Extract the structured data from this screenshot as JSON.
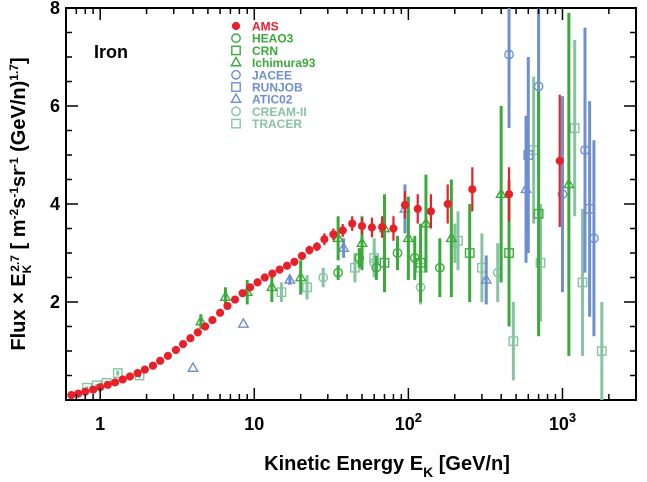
{
  "chart_data": {
    "type": "scatter",
    "title": "",
    "panel_label": "Iron",
    "xlabel": "Kinetic Energy E_K [GeV/n]",
    "ylabel": "Flux × E_K^2.7 [ m^-2 s^-1 sr^-1 (GeV/n)^1.7 ]",
    "x_scale": "log",
    "xlim": [
      0.6,
      3000
    ],
    "ylim": [
      0,
      8
    ],
    "x_ticks": [
      {
        "value": 1,
        "label": "1"
      },
      {
        "value": 10,
        "label": "10"
      },
      {
        "value": 100,
        "label": "10",
        "sup": "2"
      },
      {
        "value": 1000,
        "label": "10",
        "sup": "3"
      }
    ],
    "y_ticks": [
      {
        "value": 2,
        "label": "2"
      },
      {
        "value": 4,
        "label": "4"
      },
      {
        "value": 6,
        "label": "6"
      },
      {
        "value": 8,
        "label": "8"
      }
    ],
    "legend_position": "top-left",
    "series": [
      {
        "name": "AMS",
        "color": "#e8202a",
        "marker": "filled-circle",
        "points": [
          [
            0.65,
            0.1,
            0.02
          ],
          [
            0.72,
            0.13,
            0.02
          ],
          [
            0.8,
            0.17,
            0.02
          ],
          [
            0.9,
            0.21,
            0.02
          ],
          [
            1.0,
            0.26,
            0.02
          ],
          [
            1.12,
            0.31,
            0.02
          ],
          [
            1.25,
            0.36,
            0.02
          ],
          [
            1.4,
            0.42,
            0.02
          ],
          [
            1.56,
            0.48,
            0.02
          ],
          [
            1.75,
            0.55,
            0.03
          ],
          [
            1.95,
            0.62,
            0.03
          ],
          [
            2.2,
            0.7,
            0.03
          ],
          [
            2.45,
            0.8,
            0.03
          ],
          [
            2.75,
            0.9,
            0.03
          ],
          [
            3.1,
            1.02,
            0.03
          ],
          [
            3.45,
            1.14,
            0.03
          ],
          [
            3.85,
            1.26,
            0.04
          ],
          [
            4.3,
            1.38,
            0.04
          ],
          [
            4.8,
            1.5,
            0.04
          ],
          [
            5.35,
            1.63,
            0.04
          ],
          [
            6.0,
            1.78,
            0.05
          ],
          [
            6.7,
            1.92,
            0.05
          ],
          [
            7.5,
            2.05,
            0.05
          ],
          [
            8.4,
            2.18,
            0.05
          ],
          [
            9.4,
            2.3,
            0.06
          ],
          [
            10.5,
            2.4,
            0.06
          ],
          [
            11.7,
            2.5,
            0.06
          ],
          [
            13.1,
            2.58,
            0.06
          ],
          [
            14.6,
            2.66,
            0.07
          ],
          [
            16.3,
            2.74,
            0.07
          ],
          [
            18.2,
            2.82,
            0.08
          ],
          [
            20.4,
            2.94,
            0.08
          ],
          [
            22.8,
            3.06,
            0.09
          ],
          [
            25.5,
            3.13,
            0.09
          ],
          [
            28.5,
            3.28,
            0.12
          ],
          [
            32.6,
            3.38,
            0.12
          ],
          [
            37.5,
            3.46,
            0.13
          ],
          [
            43.2,
            3.6,
            0.15
          ],
          [
            50.0,
            3.55,
            0.17
          ],
          [
            58.0,
            3.52,
            0.2
          ],
          [
            67.5,
            3.53,
            0.22
          ],
          [
            80.0,
            3.5,
            0.25
          ],
          [
            95.0,
            3.98,
            0.28
          ],
          [
            115,
            3.9,
            0.3
          ],
          [
            140,
            3.85,
            0.35
          ],
          [
            180,
            4.0,
            0.4
          ],
          [
            260,
            4.3,
            0.45
          ],
          [
            450,
            4.2,
            0.55
          ],
          [
            960,
            4.88,
            1.35
          ]
        ]
      },
      {
        "name": "HEAO3",
        "color": "#3aaa3a",
        "marker": "open-circle",
        "points": [
          [
            35,
            2.6,
            0.15
          ],
          [
            48,
            2.9,
            0.2
          ],
          [
            62,
            2.7,
            0.25
          ],
          [
            85,
            3.0,
            0.35
          ],
          [
            110,
            2.9,
            0.45
          ],
          [
            160,
            2.7,
            0.6
          ]
        ]
      },
      {
        "name": "CRN",
        "color": "#3aaa3a",
        "marker": "open-square",
        "points": [
          [
            70,
            2.8,
            0.6
          ],
          [
            120,
            2.8,
            0.8
          ],
          [
            250,
            3.0,
            1.0
          ],
          [
            450,
            3.0,
            1.5
          ],
          [
            700,
            3.8,
            2.5
          ]
        ]
      },
      {
        "name": "Ichimura93",
        "color": "#3aaa3a",
        "marker": "open-triangle",
        "points": [
          [
            4.5,
            1.6,
            0.15
          ],
          [
            6.5,
            2.1,
            0.2
          ],
          [
            9.0,
            2.2,
            0.25
          ],
          [
            13,
            2.3,
            0.3
          ],
          [
            20,
            2.5,
            0.35
          ],
          [
            35,
            3.3,
            0.45
          ],
          [
            50,
            3.2,
            0.55
          ],
          [
            70,
            3.5,
            0.7
          ],
          [
            100,
            3.3,
            0.85
          ],
          [
            130,
            3.6,
            1.0
          ],
          [
            190,
            3.3,
            1.2
          ],
          [
            400,
            4.2,
            1.8
          ],
          [
            1100,
            4.4,
            3.5
          ]
        ]
      },
      {
        "name": "JACEE",
        "color": "#6f8fcf",
        "marker": "open-circle",
        "points": [
          [
            450,
            7.05,
            1.5
          ],
          [
            700,
            6.4,
            1.8
          ],
          [
            1000,
            4.2,
            2.0
          ],
          [
            1400,
            5.1,
            2.5
          ],
          [
            1600,
            3.3,
            2.0
          ]
        ]
      },
      {
        "name": "RUNJOB",
        "color": "#6f8fcf",
        "marker": "open-square",
        "points": [
          [
            600,
            5.0,
            2.0
          ],
          [
            1500,
            3.9,
            2.2
          ]
        ]
      },
      {
        "name": "ATIC02",
        "color": "#6f8fcf",
        "marker": "open-triangle",
        "points": [
          [
            4.0,
            0.65,
            0.0
          ],
          [
            8.5,
            1.55,
            0.0
          ],
          [
            17,
            2.45,
            0.1
          ],
          [
            38,
            3.1,
            0.2
          ],
          [
            95,
            3.9,
            0.5
          ],
          [
            320,
            2.45,
            0.5
          ],
          [
            580,
            4.3,
            1.5
          ]
        ]
      },
      {
        "name": "CREAM-II",
        "color": "#86c4a2",
        "marker": "open-circle",
        "points": [
          [
            28,
            2.5,
            0.2
          ],
          [
            60,
            2.8,
            0.3
          ],
          [
            120,
            2.3,
            0.35
          ],
          [
            200,
            3.2,
            0.4
          ],
          [
            380,
            2.6,
            0.6
          ]
        ]
      },
      {
        "name": "TRACER",
        "color": "#86c4a2",
        "marker": "open-square",
        "points": [
          [
            0.82,
            0.25,
            0.03
          ],
          [
            0.95,
            0.3,
            0.03
          ],
          [
            1.1,
            0.35,
            0.04
          ],
          [
            1.3,
            0.55,
            0.05
          ],
          [
            1.8,
            0.5,
            0.05
          ],
          [
            15,
            2.2,
            0.2
          ],
          [
            22,
            2.3,
            0.25
          ],
          [
            45,
            2.7,
            0.3
          ],
          [
            60,
            2.9,
            0.4
          ],
          [
            120,
            2.7,
            0.5
          ],
          [
            210,
            3.25,
            0.6
          ],
          [
            300,
            2.7,
            0.7
          ],
          [
            480,
            1.2,
            0.8
          ],
          [
            650,
            5.1,
            1.5
          ],
          [
            720,
            2.8,
            1.2
          ],
          [
            1200,
            5.55,
            1.8
          ],
          [
            1350,
            2.4,
            1.5
          ],
          [
            1800,
            1.0,
            1.0
          ]
        ]
      }
    ]
  }
}
